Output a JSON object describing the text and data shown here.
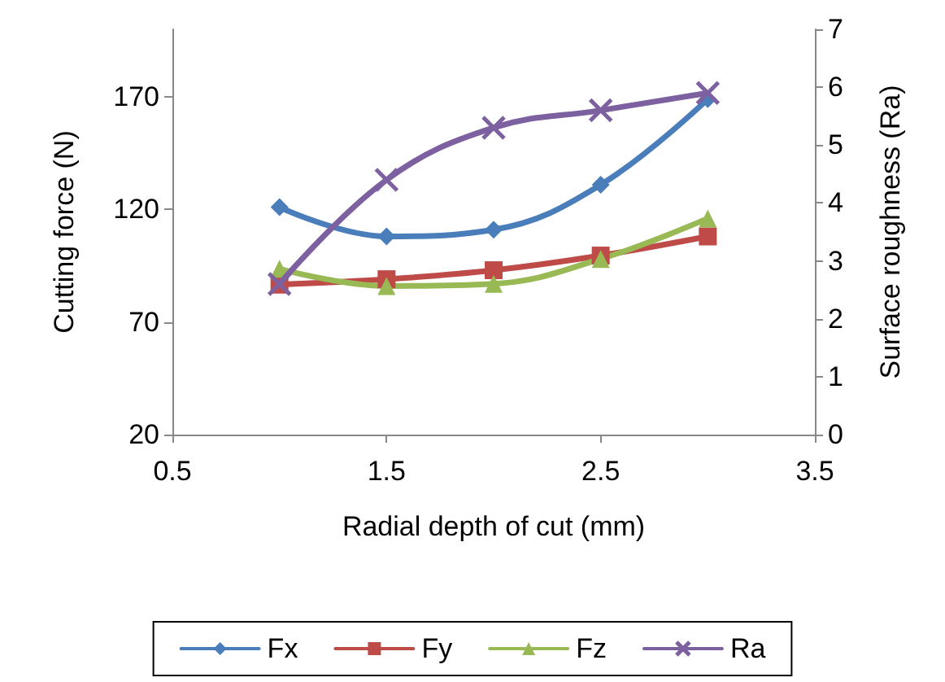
{
  "chart_data": {
    "type": "line",
    "xlabel": "Radial depth of cut (mm)",
    "ylabel": "Cutting force (N)",
    "y2label": "Surface roughness (Ra)",
    "x": [
      1,
      1.5,
      2,
      2.5,
      3
    ],
    "xlim": [
      0.5,
      3.5
    ],
    "xticks": [
      0.5,
      1.5,
      2.5,
      3.5
    ],
    "ylim": [
      20,
      200
    ],
    "yticks": [
      20,
      70,
      120,
      170
    ],
    "y2lim": [
      0,
      7
    ],
    "y2ticks": [
      0,
      1,
      2,
      3,
      4,
      5,
      6,
      7
    ],
    "grid": false,
    "legend": "bottom",
    "series": [
      {
        "name": "Fx",
        "color": "#4a7ebb",
        "marker": "diamond",
        "values": [
          121,
          108,
          111,
          131,
          169
        ]
      },
      {
        "name": "Fy",
        "color": "#be4b48",
        "marker": "square",
        "values": [
          86.6,
          89,
          93,
          99.5,
          108
        ]
      },
      {
        "name": "Fz",
        "color": "#98b954",
        "marker": "triangle",
        "values": [
          93.6,
          86,
          87,
          98,
          116
        ]
      },
      {
        "name": "Ra",
        "color": "#7d60a0",
        "marker": "cross",
        "axis": "y2",
        "values": [
          2.6,
          4.4,
          5.3,
          5.6,
          5.9
        ]
      }
    ]
  }
}
